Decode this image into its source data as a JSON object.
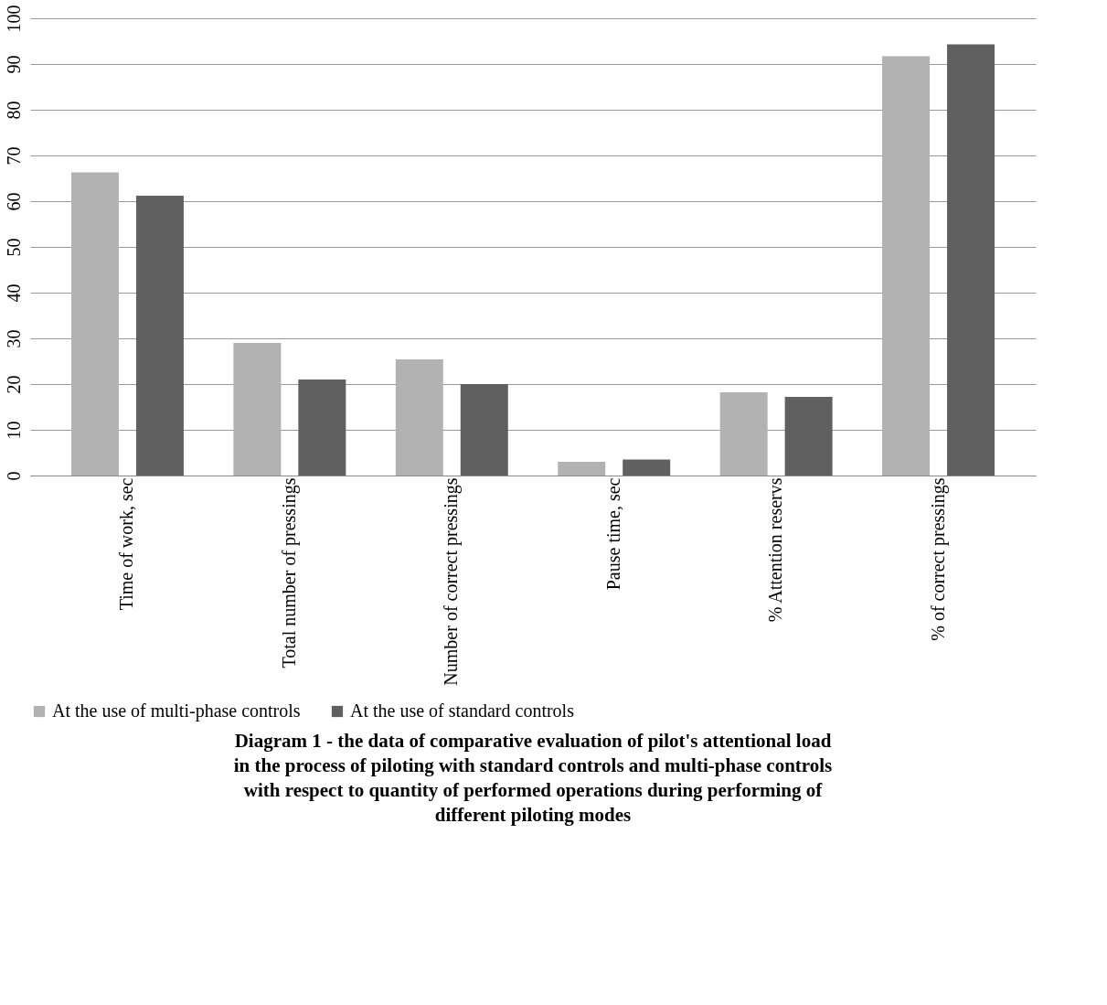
{
  "chart_data": {
    "type": "bar",
    "title": "Diagram 1 - the data of comparative evaluation of pilot's attentional load in the process of piloting with standard controls and multi-phase controls with respect to quantity of performed operations during performing of different piloting modes",
    "categories": [
      "Time of work, sec",
      "Total number of pressings",
      "Number of correct pressings",
      "Pause time, sec",
      "% Attention reservs",
      "% of correct pressings"
    ],
    "series": [
      {
        "name": "At the use of multi-phase controls",
        "color": "#b2b2b2",
        "values": [
          66.3,
          29.0,
          25.4,
          3.0,
          18.2,
          91.7
        ]
      },
      {
        "name": "At the use of standard controls",
        "color": "#606060",
        "values": [
          61.2,
          21.0,
          20.0,
          3.5,
          17.2,
          94.3
        ]
      }
    ],
    "ylim": [
      0,
      100
    ],
    "yticks": [
      0,
      10,
      20,
      30,
      40,
      50,
      60,
      70,
      80,
      90,
      100
    ],
    "grid": "y",
    "legend": "bottom"
  }
}
